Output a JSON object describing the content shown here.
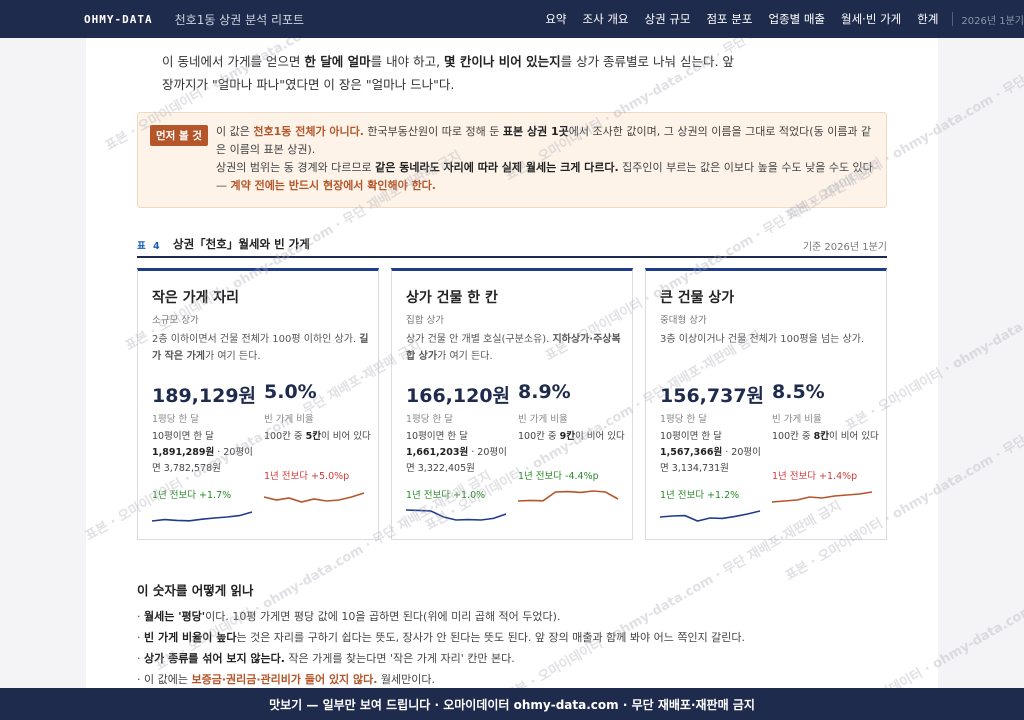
{
  "header": {
    "brand": "OHMY-DATA",
    "title": "천호1동 상권 분석 리포트",
    "nav": [
      "요약",
      "조사 개요",
      "상권 규모",
      "점포 분포",
      "업종별 매출",
      "월세·빈 가게",
      "한계"
    ],
    "date": "2026년 1분기"
  },
  "intro": {
    "p1": "이 동네에서 가게를 얻으면 ",
    "b1": "한 달에 얼마",
    "p2": "를 내야 하고, ",
    "b2": "몇 칸이나 비어 있는지",
    "p3": "를 상가 종류별로 나눠 싣는다. 앞",
    "p4": "장까지가 \"얼마나 파나\"였다면 이 장은 \"얼마나 드나\"다."
  },
  "notice": {
    "tag": "먼저 볼 것",
    "a1": "이 값은 ",
    "a2": "천호1동 전체가 아니다.",
    "a3": " 한국부동산원이 따로 정해 둔 ",
    "a4": "표본 상권 1곳",
    "a5": "에서 조사한 값이며, 그 상권의 이름을 그대로 적었다(동 이름과 같은 이름의 표본 상권).",
    "b1": "상권의 범위는 동 경계와 다르므로 ",
    "b2": "같은 동네라도 자리에 따라 실제 월세는 크게 다르다.",
    "b3": " 집주인이 부르는 값은 이보다 높을 수도 낮을 수도 있다 — ",
    "b4": "계약 전에는 반드시 현장에서 확인해야 한다."
  },
  "table": {
    "label": "표 4",
    "title": "상권「천호」월세와 빈 가게",
    "date": "기준 2026년 1분기"
  },
  "cards": [
    {
      "name": "작은 가게 자리",
      "sub": "소규모 상가",
      "desc": "2층 이하이면서 건물 전체가 100평 이하인 상가. ",
      "desc_b": "길가 작은 가게",
      "desc_end": "가 여기 든다.",
      "price": "189,129원",
      "price_label": "1평당 한 달",
      "detail_1": "10평이면 한 달 ",
      "detail_b": "1,891,289원",
      "detail_2": " · 20평이면 3,782,578원",
      "price_change": "1년 전보다 +1.7%",
      "rate": "5.0%",
      "rate_label": "빈 가게 비율",
      "vac_1": "100칸 중 ",
      "vac_b": "5칸",
      "vac_2": "이 비어 있다",
      "vac_change": "1년 전보다 +5.0%p",
      "vac_dir": "up",
      "price_trend": [
        0.35,
        0.42,
        0.38,
        0.36,
        0.44,
        0.5,
        0.55,
        0.62,
        0.8
      ],
      "vac_trend": [
        0.55,
        0.4,
        0.5,
        0.3,
        0.45,
        0.35,
        0.4,
        0.55,
        0.75
      ]
    },
    {
      "name": "상가 건물 한 칸",
      "sub": "집합 상가",
      "desc": "상가 건물 안 개별 호실(구분소유). ",
      "desc_b": "지하상가·주상복합 상가",
      "desc_end": "가 여기 든다.",
      "price": "166,120원",
      "price_label": "1평당 한 달",
      "detail_1": "10평이면 한 달 ",
      "detail_b": "1,661,203원",
      "detail_2": " · 20평이면 3,322,405원",
      "price_change": "1년 전보다 +1.0%",
      "rate": "8.9%",
      "rate_label": "빈 가게 비율",
      "vac_1": "100칸 중 ",
      "vac_b": "9칸",
      "vac_2": "이 비어 있다",
      "vac_change": "1년 전보다 -4.4%p",
      "vac_dir": "down",
      "price_trend": [
        0.9,
        0.88,
        0.85,
        0.55,
        0.4,
        0.42,
        0.4,
        0.48,
        0.7
      ],
      "vac_trend": [
        0.35,
        0.38,
        0.36,
        0.8,
        0.82,
        0.78,
        0.85,
        0.8,
        0.45
      ]
    },
    {
      "name": "큰 건물 상가",
      "sub": "중대형 상가",
      "desc": "3층 이상이거나 건물 전체가 100평을 넘는 상가.",
      "desc_b": "",
      "desc_end": "",
      "price": "156,737원",
      "price_label": "1평당 한 달",
      "detail_1": "10평이면 한 달 ",
      "detail_b": "1,567,366원",
      "detail_2": " · 20평이면 3,134,731원",
      "price_change": "1년 전보다 +1.2%",
      "rate": "8.5%",
      "rate_label": "빈 가게 비율",
      "vac_1": "100칸 중 ",
      "vac_b": "8칸",
      "vac_2": "이 비어 있다",
      "vac_change": "1년 전보다 +1.4%p",
      "vac_dir": "up",
      "price_trend": [
        0.55,
        0.6,
        0.62,
        0.35,
        0.5,
        0.48,
        0.58,
        0.7,
        0.85
      ],
      "vac_trend": [
        0.3,
        0.35,
        0.4,
        0.55,
        0.5,
        0.6,
        0.65,
        0.7,
        0.8
      ]
    }
  ],
  "guide": {
    "title": "이 숫자를 어떻게 읽나",
    "items": [
      {
        "b": "월세는 '평당'",
        "t": "이다. 10평 가게면 평당 값에 10을 곱하면 된다(위에 미리 곱해 적어 두었다)."
      },
      {
        "b": "빈 가게 비율이 높다",
        "t": "는 것은 자리를 구하기 쉽다는 뜻도, 장사가 안 된다는 뜻도 된다. 앞 장의 매출과 함께 봐야 어느 쪽인지 갈린다."
      },
      {
        "b": "상가 종류를 섞어 보지 않는다.",
        "t": " 작은 가게를 찾는다면 '작은 가게 자리' 칸만 본다."
      },
      {
        "b": "",
        "pre": "이 값에는 ",
        "hl": "보증금·권리금·관리비가 들어 있지 않다.",
        "t": " 월세만이다."
      }
    ]
  },
  "footer": {
    "text": "맛보기 — 일부만 보여 드립니다 · 오마이데이터 ohmy-data.com · 무단 재배포·재판매 금지"
  },
  "watermark": {
    "text": "표본 · 오마이데이터 · ohmy-data.com · 무단 재배포·재판매 금지"
  },
  "colors": {
    "navy": "#1f2b4d",
    "accent": "#b5562a",
    "price_line": "#1f3c8a",
    "vac_line": "#b5562a",
    "green": "#2b8a2b",
    "red": "#d03a3a"
  }
}
